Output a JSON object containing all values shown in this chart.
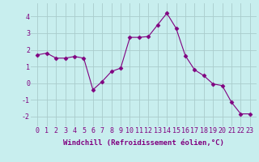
{
  "x": [
    0,
    1,
    2,
    3,
    4,
    5,
    6,
    7,
    8,
    9,
    10,
    11,
    12,
    13,
    14,
    15,
    16,
    17,
    18,
    19,
    20,
    21,
    22,
    23
  ],
  "y": [
    1.7,
    1.8,
    1.5,
    1.5,
    1.6,
    1.5,
    -0.4,
    0.1,
    0.7,
    0.9,
    2.75,
    2.75,
    2.8,
    3.5,
    4.2,
    3.3,
    1.65,
    0.8,
    0.45,
    -0.05,
    -0.15,
    -1.15,
    -1.85,
    -1.85
  ],
  "line_color": "#800080",
  "marker": "D",
  "marker_size": 2.5,
  "bg_color": "#c8eeee",
  "grid_color": "#aacccc",
  "xlabel": "Windchill (Refroidissement éolien,°C)",
  "xlabel_fontsize": 6.5,
  "tick_fontsize": 6,
  "ylim": [
    -2.6,
    4.8
  ],
  "yticks": [
    -2,
    -1,
    0,
    1,
    2,
    3,
    4
  ],
  "xticks": [
    0,
    1,
    2,
    3,
    4,
    5,
    6,
    7,
    8,
    9,
    10,
    11,
    12,
    13,
    14,
    15,
    16,
    17,
    18,
    19,
    20,
    21,
    22,
    23
  ]
}
